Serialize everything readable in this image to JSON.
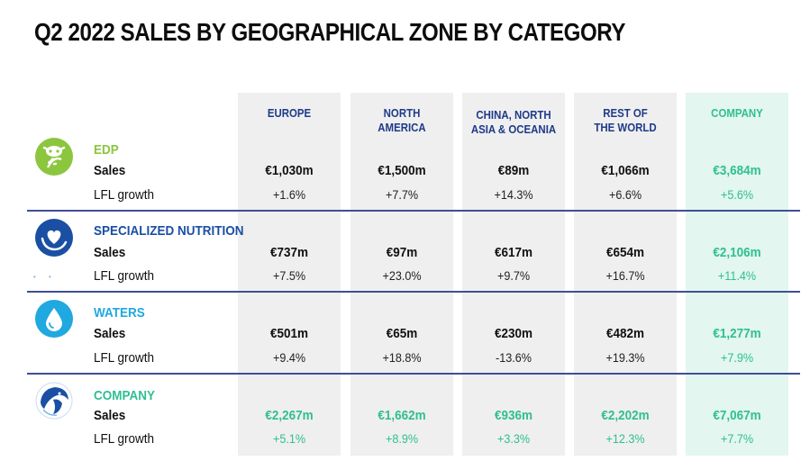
{
  "title": "Q2 2022 SALES BY GEOGRAPHICAL ZONE BY CATEGORY",
  "colors": {
    "navy": "#1e3a8a",
    "teal": "#2fbf92",
    "edp_green": "#8cc63f",
    "blue": "#1a4fa3",
    "waters_blue": "#20a8e0",
    "column_grey": "#efefef",
    "column_teal": "#e3f6ef",
    "divider": "#3e4f94"
  },
  "columns": [
    {
      "label_line1": "EUROPE",
      "label_line2": ""
    },
    {
      "label_line1": "NORTH",
      "label_line2": "AMERICA"
    },
    {
      "label_line1": "CHINA, NORTH",
      "label_line2": "ASIA & OCEANIA"
    },
    {
      "label_line1": "REST OF",
      "label_line2": "THE WORLD"
    },
    {
      "label_line1": "COMPANY",
      "label_line2": ""
    }
  ],
  "row_labels": {
    "sales": "Sales",
    "growth": "LFL growth"
  },
  "categories": [
    {
      "name": "EDP",
      "icon": "edp-wheat-cow-icon",
      "sales": [
        "€1,030m",
        "€1,500m",
        "€89m",
        "€1,066m",
        "€3,684m"
      ],
      "growth": [
        "+1.6%",
        "+7.7%",
        "+14.3%",
        "+6.6%",
        "+5.6%"
      ]
    },
    {
      "name": "SPECIALIZED NUTRITION",
      "icon": "heart-hand-icon",
      "sales": [
        "€737m",
        "€97m",
        "€617m",
        "€654m",
        "€2,106m"
      ],
      "growth": [
        "+7.5%",
        "+23.0%",
        "+9.7%",
        "+16.7%",
        "+11.4%"
      ]
    },
    {
      "name": "WATERS",
      "icon": "water-drop-icon",
      "sales": [
        "€501m",
        "€65m",
        "€230m",
        "€482m",
        "€1,277m"
      ],
      "growth": [
        "+9.4%",
        "+18.8%",
        "-13.6%",
        "+19.3%",
        "+7.9%"
      ]
    },
    {
      "name": "COMPANY",
      "icon": "company-logo-icon",
      "sales": [
        "€2,267m",
        "€1,662m",
        "€936m",
        "€2,202m",
        "€7,067m"
      ],
      "growth": [
        "+5.1%",
        "+8.9%",
        "+3.3%",
        "+12.3%",
        "+7.7%"
      ]
    }
  ]
}
